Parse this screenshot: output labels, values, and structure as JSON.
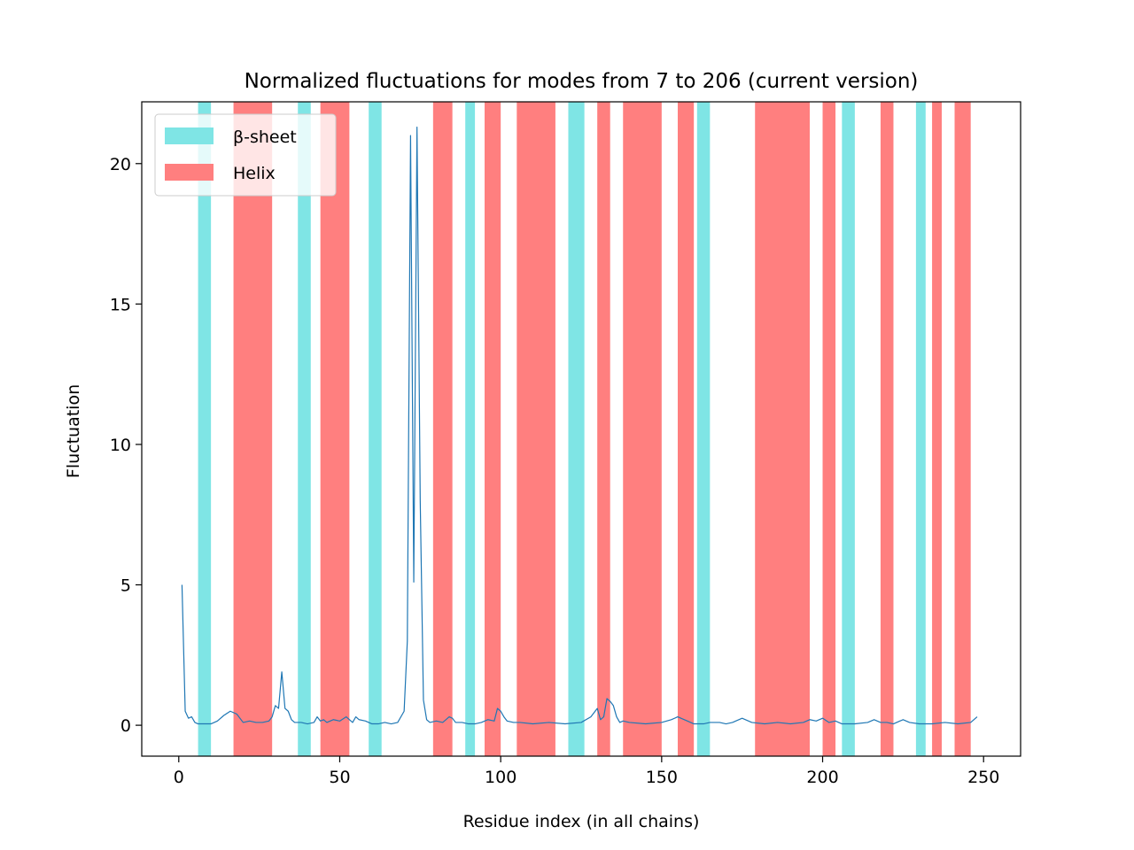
{
  "chart_data": {
    "type": "line",
    "title": "Normalized fluctuations for modes from 7 to 206 (current version)",
    "xlabel": "Residue index (in all chains)",
    "ylabel": "Fluctuation",
    "xlim": [
      -11.5,
      261.5
    ],
    "ylim": [
      -1.1,
      22.2
    ],
    "xticks": [
      0,
      50,
      100,
      150,
      200,
      250
    ],
    "yticks": [
      0,
      5,
      10,
      15,
      20
    ],
    "xtick_labels": [
      "0",
      "50",
      "100",
      "150",
      "200",
      "250"
    ],
    "ytick_labels": [
      "0",
      "5",
      "10",
      "15",
      "20"
    ],
    "grid": false,
    "legend": {
      "placement": "top-left",
      "entries": [
        {
          "label": "β-sheet",
          "color": "#7fe5e5"
        },
        {
          "label": "Helix",
          "color": "#ff7f7f"
        }
      ]
    },
    "regions": {
      "beta_sheet": [
        [
          6,
          10
        ],
        [
          37,
          41
        ],
        [
          59,
          63
        ],
        [
          89,
          92
        ],
        [
          121,
          126
        ],
        [
          161,
          165
        ],
        [
          206,
          210
        ],
        [
          229,
          232
        ]
      ],
      "helix": [
        [
          17,
          29
        ],
        [
          44,
          53
        ],
        [
          79,
          85
        ],
        [
          95,
          100
        ],
        [
          105,
          117
        ],
        [
          130,
          134
        ],
        [
          138,
          150
        ],
        [
          155,
          160
        ],
        [
          179,
          196
        ],
        [
          200,
          204
        ],
        [
          218,
          222
        ],
        [
          234,
          237
        ],
        [
          241,
          246
        ]
      ]
    },
    "series": [
      {
        "color": "#1f77b4",
        "x": [
          1,
          2,
          3,
          4,
          5,
          6,
          8,
          10,
          12,
          14,
          16,
          18,
          20,
          22,
          24,
          26,
          28,
          29,
          30,
          31,
          32,
          33,
          34,
          35,
          36,
          38,
          40,
          42,
          43,
          44,
          45,
          46,
          48,
          50,
          52,
          54,
          55,
          56,
          58,
          60,
          62,
          64,
          66,
          68,
          70,
          71,
          72,
          73,
          74,
          75,
          76,
          77,
          78,
          80,
          82,
          84,
          85,
          86,
          88,
          90,
          92,
          94,
          96,
          98,
          99,
          100,
          101,
          102,
          104,
          106,
          110,
          115,
          120,
          125,
          128,
          130,
          131,
          132,
          133,
          134,
          135,
          136,
          137,
          138,
          140,
          145,
          150,
          153,
          155,
          156,
          158,
          160,
          163,
          165,
          168,
          170,
          172,
          175,
          178,
          182,
          186,
          190,
          194,
          196,
          198,
          200,
          202,
          204,
          206,
          210,
          214,
          216,
          218,
          220,
          222,
          224,
          225,
          227,
          230,
          234,
          238,
          242,
          246,
          248
        ],
        "y": [
          5.0,
          0.5,
          0.25,
          0.3,
          0.1,
          0.05,
          0.05,
          0.05,
          0.15,
          0.35,
          0.5,
          0.4,
          0.1,
          0.15,
          0.1,
          0.1,
          0.15,
          0.3,
          0.7,
          0.6,
          1.9,
          0.6,
          0.5,
          0.2,
          0.1,
          0.1,
          0.05,
          0.1,
          0.3,
          0.15,
          0.2,
          0.1,
          0.2,
          0.15,
          0.3,
          0.1,
          0.3,
          0.2,
          0.15,
          0.05,
          0.05,
          0.1,
          0.05,
          0.1,
          0.5,
          3.0,
          21.0,
          5.1,
          21.3,
          8.0,
          0.9,
          0.2,
          0.1,
          0.15,
          0.1,
          0.3,
          0.25,
          0.1,
          0.1,
          0.05,
          0.05,
          0.1,
          0.2,
          0.15,
          0.6,
          0.5,
          0.3,
          0.15,
          0.1,
          0.1,
          0.05,
          0.1,
          0.05,
          0.1,
          0.3,
          0.6,
          0.2,
          0.3,
          0.95,
          0.85,
          0.7,
          0.3,
          0.1,
          0.15,
          0.1,
          0.05,
          0.1,
          0.2,
          0.3,
          0.25,
          0.15,
          0.05,
          0.05,
          0.1,
          0.1,
          0.05,
          0.1,
          0.25,
          0.1,
          0.05,
          0.1,
          0.05,
          0.1,
          0.2,
          0.15,
          0.25,
          0.1,
          0.15,
          0.05,
          0.05,
          0.1,
          0.2,
          0.1,
          0.1,
          0.05,
          0.15,
          0.2,
          0.1,
          0.05,
          0.05,
          0.1,
          0.05,
          0.1,
          0.3
        ]
      }
    ]
  }
}
